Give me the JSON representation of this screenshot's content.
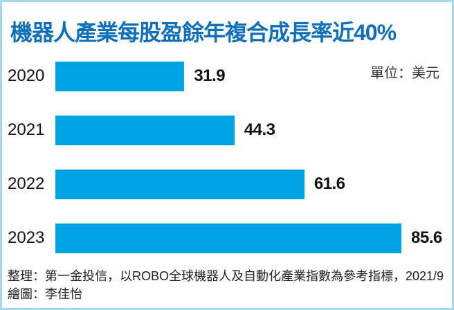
{
  "title": "機器人產業每股盈餘年複合成長率近40%",
  "unit_label": "單位：美元",
  "footer": {
    "source": "整理：第一金投信，以ROBO全球機器人及自動化產業指數為參考指標，2021/9",
    "credit": "繪圖：李佳怡"
  },
  "colors": {
    "bar": "#00a3e2",
    "title": "#0f6fb8",
    "border": "#a8d8f0"
  },
  "chart_data": {
    "type": "bar",
    "orientation": "horizontal",
    "title": "機器人產業每股盈餘年複合成長率近40%",
    "categories": [
      "2020",
      "2021",
      "2022",
      "2023"
    ],
    "values": [
      31.9,
      44.3,
      61.6,
      85.6
    ],
    "value_labels": [
      "31.9",
      "44.3",
      "61.6",
      "85.6"
    ],
    "unit": "美元",
    "xlabel": "",
    "ylabel": "",
    "grid": false,
    "legend": null
  }
}
